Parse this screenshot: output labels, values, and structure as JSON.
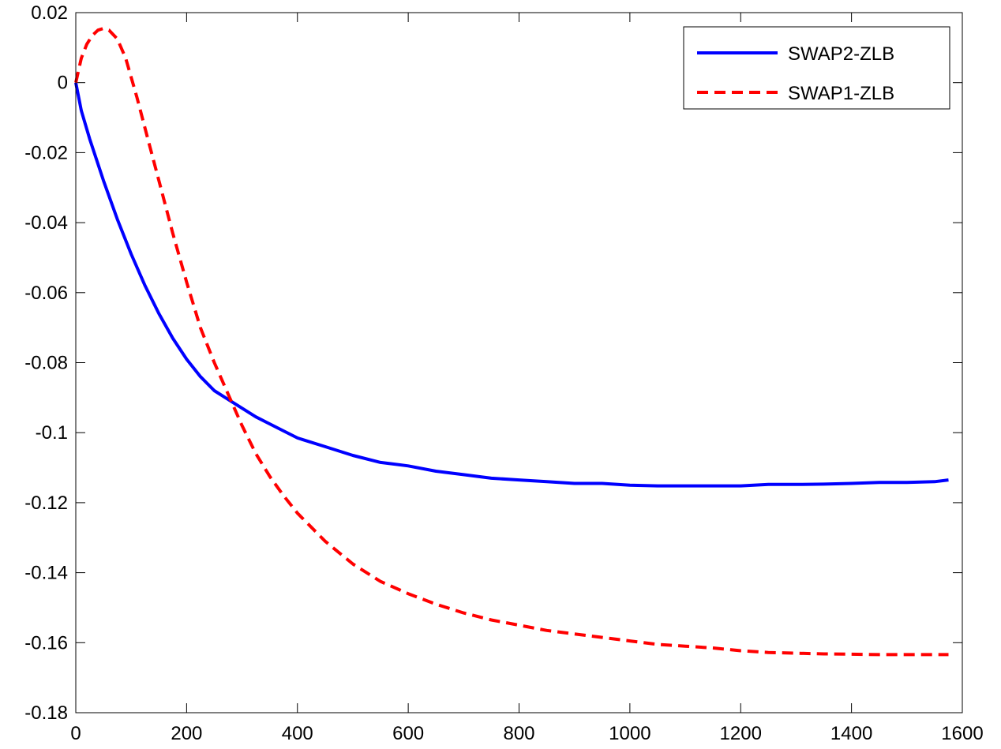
{
  "chart_data": {
    "type": "line",
    "title": "",
    "xlabel": "",
    "ylabel": "",
    "xlim": [
      0,
      1600
    ],
    "ylim": [
      -0.18,
      0.02
    ],
    "xticks": [
      0,
      200,
      400,
      600,
      800,
      1000,
      1200,
      1400,
      1600
    ],
    "yticks": [
      0.02,
      0,
      -0.02,
      -0.04,
      -0.06,
      -0.08,
      -0.1,
      -0.12,
      -0.14,
      -0.16,
      -0.18
    ],
    "xtick_labels": [
      "0",
      "200",
      "400",
      "600",
      "800",
      "1000",
      "1200",
      "1400",
      "1600"
    ],
    "ytick_labels": [
      "0.02",
      "0",
      "-0.02",
      "-0.04",
      "-0.06",
      "-0.08",
      "-0.1",
      "-0.12",
      "-0.14",
      "-0.16",
      "-0.18"
    ],
    "grid": false,
    "legend_position": "top-right",
    "series": [
      {
        "name": "SWAP2-ZLB",
        "color": "#0000ff",
        "style": "solid",
        "x": [
          0,
          10,
          25,
          50,
          75,
          100,
          125,
          150,
          175,
          200,
          225,
          250,
          275,
          300,
          325,
          350,
          375,
          400,
          450,
          500,
          550,
          600,
          650,
          700,
          750,
          800,
          850,
          900,
          950,
          1000,
          1050,
          1100,
          1150,
          1200,
          1250,
          1300,
          1350,
          1400,
          1450,
          1500,
          1550,
          1575
        ],
        "y": [
          0,
          -0.008,
          -0.016,
          -0.028,
          -0.039,
          -0.049,
          -0.058,
          -0.066,
          -0.073,
          -0.079,
          -0.084,
          -0.088,
          -0.0905,
          -0.093,
          -0.0955,
          -0.0975,
          -0.0995,
          -0.1015,
          -0.104,
          -0.1065,
          -0.1085,
          -0.1095,
          -0.111,
          -0.112,
          -0.113,
          -0.1135,
          -0.114,
          -0.1145,
          -0.1145,
          -0.115,
          -0.1152,
          -0.1152,
          -0.1152,
          -0.1152,
          -0.1148,
          -0.1148,
          -0.1147,
          -0.1145,
          -0.1142,
          -0.1142,
          -0.114,
          -0.1135
        ]
      },
      {
        "name": "SWAP1-ZLB",
        "color": "#ff0000",
        "style": "dashed",
        "x": [
          0,
          10,
          20,
          30,
          40,
          50,
          60,
          75,
          90,
          110,
          130,
          150,
          175,
          200,
          225,
          250,
          275,
          300,
          325,
          350,
          375,
          400,
          450,
          500,
          550,
          600,
          650,
          700,
          750,
          800,
          850,
          900,
          950,
          1000,
          1050,
          1100,
          1150,
          1200,
          1250,
          1300,
          1350,
          1400,
          1450,
          1500,
          1550,
          1575
        ],
        "y": [
          0,
          0.007,
          0.011,
          0.0135,
          0.015,
          0.0155,
          0.015,
          0.0125,
          0.007,
          -0.004,
          -0.016,
          -0.028,
          -0.043,
          -0.057,
          -0.07,
          -0.08,
          -0.089,
          -0.098,
          -0.106,
          -0.1125,
          -0.118,
          -0.123,
          -0.131,
          -0.1375,
          -0.1425,
          -0.146,
          -0.149,
          -0.1515,
          -0.1535,
          -0.155,
          -0.1565,
          -0.1575,
          -0.1585,
          -0.1595,
          -0.1605,
          -0.161,
          -0.1615,
          -0.1623,
          -0.1628,
          -0.163,
          -0.1632,
          -0.1633,
          -0.1634,
          -0.1634,
          -0.1634,
          -0.1634
        ]
      }
    ]
  }
}
